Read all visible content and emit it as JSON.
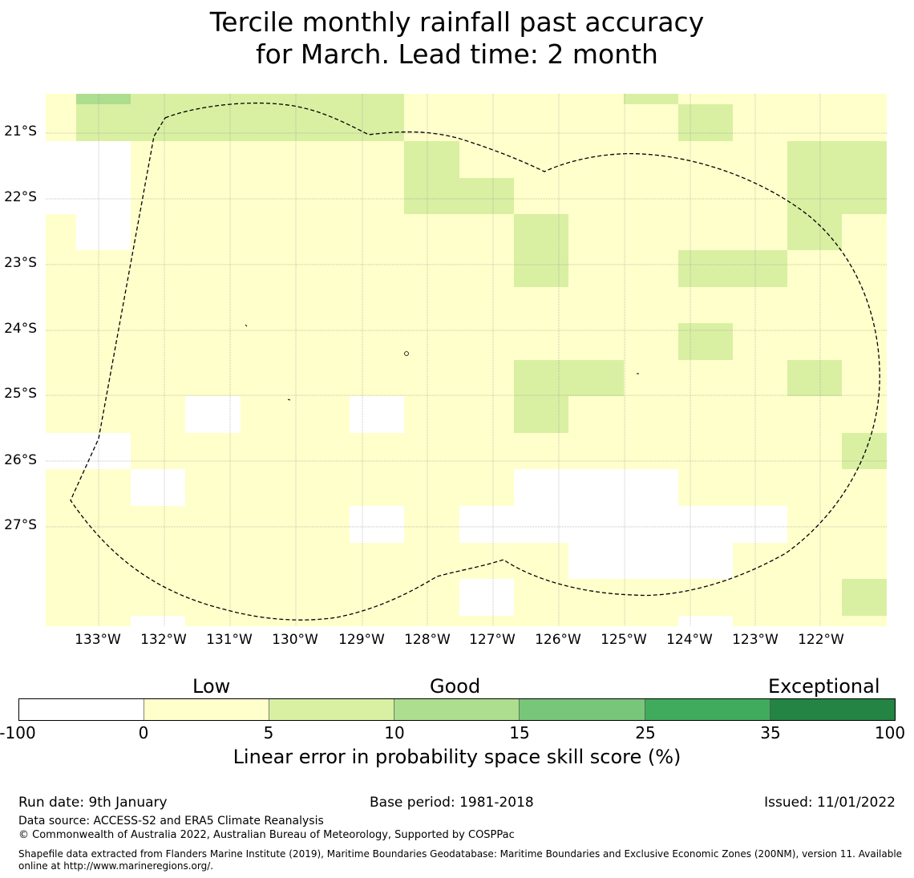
{
  "title": {
    "line1": "Tercile monthly rainfall past accuracy",
    "line2": "for March. Lead time: 2 month"
  },
  "map": {
    "lat_labels": [
      "21°S",
      "22°S",
      "23°S",
      "24°S",
      "25°S",
      "26°S",
      "27°S"
    ],
    "lon_labels": [
      "133°W",
      "132°W",
      "131°W",
      "130°W",
      "129°W",
      "128°W",
      "127°W",
      "126°W",
      "125°W",
      "124°W",
      "123°W",
      "122°W"
    ],
    "grid_colors": {
      "white": "#ffffff",
      "low": "#ffffcc",
      "light_green": "#d9f0a3",
      "medium_green": "#addd8e"
    },
    "border_style": "dashed",
    "border_color": "#000000"
  },
  "colorbar": {
    "categories": [
      "Low",
      "Good",
      "Exceptional"
    ],
    "ticks": [
      "-100",
      "0",
      "5",
      "10",
      "15",
      "25",
      "35",
      "100"
    ],
    "colors": [
      "#ffffff",
      "#ffffcc",
      "#d9f0a3",
      "#addd8e",
      "#78c679",
      "#41ab5d",
      "#238443"
    ],
    "label": "Linear error in probability space skill score (%)"
  },
  "footer": {
    "run_date": "Run date: 9th January",
    "base_period": "Base period: 1981-2018",
    "issued": "Issued: 11/01/2022",
    "data_source": "Data source: ACCESS-S2 and ERA5 Climate Reanalysis",
    "copyright": "© Commonwealth of Australia 2022, Australian Bureau of Meteorology, Supported by COSPPac",
    "shapefile_line1": "Shapefile data extracted from Flanders Marine Institute (2019), Maritime Boundaries Geodatabase: Maritime Boundaries and Exclusive Economic Zones (200NM), version 11. Available",
    "shapefile_line2": "online at http://www.marineregions.org/."
  }
}
